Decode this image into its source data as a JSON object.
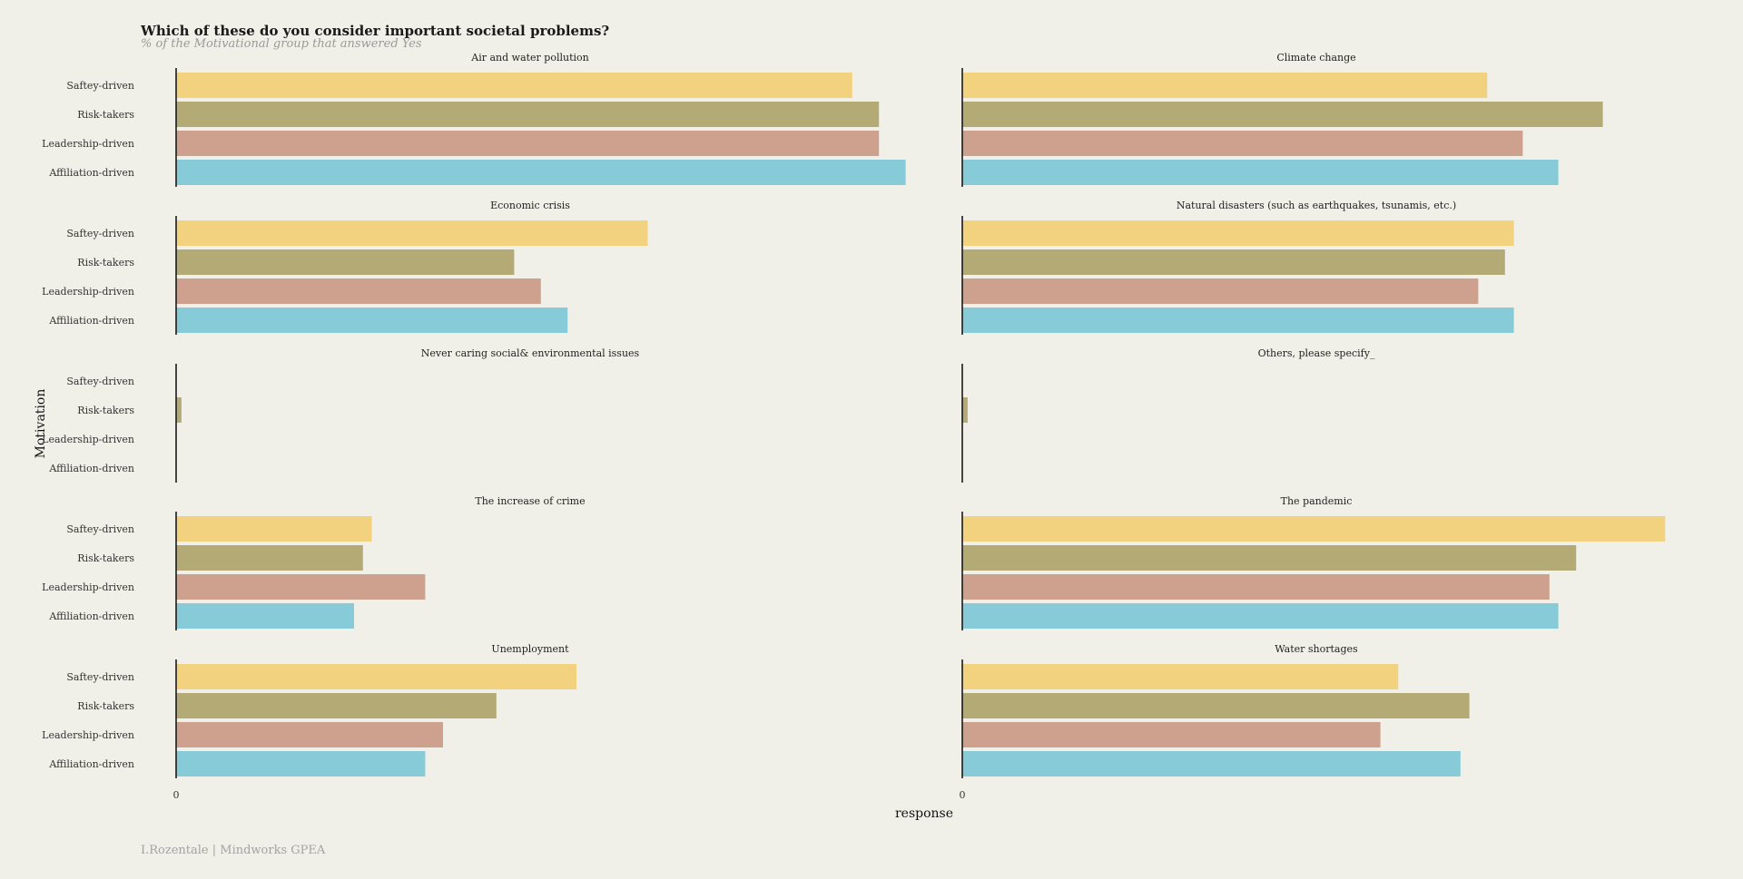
{
  "chart_data": {
    "type": "bar",
    "orientation": "horizontal",
    "title": "Which of these do you consider important societal problems?",
    "subtitle": "% of the Motivational group that answered Yes",
    "caption": "I.Rozentale | Mindworks GPEA",
    "xlabel": "response",
    "ylabel": "Motivation",
    "x_tick_label": "0",
    "categories": [
      "Saftey-driven",
      "Risk-takers",
      "Leadership-driven",
      "Affiliation-driven"
    ],
    "colors": [
      "#f2d27e",
      "#b3aa75",
      "#cea18e",
      "#87cbd9"
    ],
    "xlim": [
      0,
      100
    ],
    "panels": [
      {
        "title": "Air and water pollution",
        "values": [
          76,
          79,
          79,
          82
        ]
      },
      {
        "title": "Climate change",
        "values": [
          59,
          72,
          63,
          67
        ]
      },
      {
        "title": "Economic crisis",
        "values": [
          53,
          38,
          41,
          44
        ]
      },
      {
        "title": "Natural disasters (such as earthquakes, tsunamis, etc.)",
        "values": [
          62,
          61,
          58,
          62
        ]
      },
      {
        "title": "Never caring social& environmental issues",
        "values": [
          0,
          0.6,
          0,
          0
        ]
      },
      {
        "title": "Others, please specify_",
        "values": [
          0,
          0.6,
          0,
          0
        ]
      },
      {
        "title": "The increase of crime",
        "values": [
          22,
          21,
          28,
          20
        ]
      },
      {
        "title": "The pandemic",
        "values": [
          79,
          69,
          66,
          67
        ]
      },
      {
        "title": "Unemployment",
        "values": [
          45,
          36,
          30,
          28
        ]
      },
      {
        "title": "Water shortages",
        "values": [
          49,
          57,
          47,
          56
        ]
      }
    ]
  }
}
